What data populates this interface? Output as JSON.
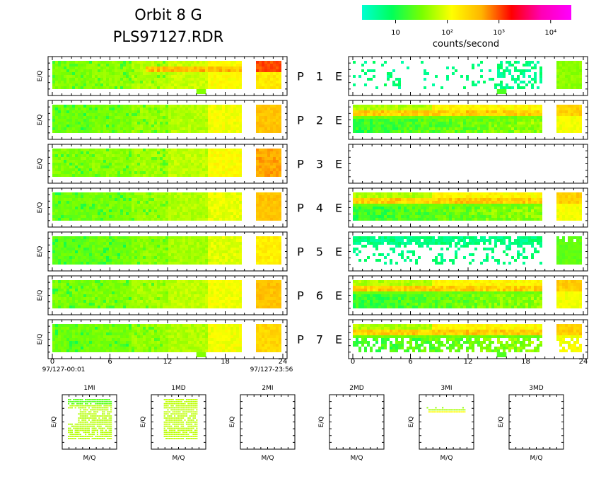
{
  "header": {
    "title_line1": "Orbit  8  G",
    "title_line2": "PLS97127.RDR"
  },
  "colorbar": {
    "label": "counts/second",
    "tick_labels": [
      "10",
      "10²",
      "10³",
      "10⁴"
    ],
    "tick_values_log": [
      1,
      2,
      3,
      4
    ],
    "range_log": [
      0.35,
      4.4
    ],
    "colors": [
      "#00ffd2",
      "#00ff5a",
      "#78ff00",
      "#ffff00",
      "#ffb400",
      "#ff0000",
      "#ff00b4",
      "#ff00ff"
    ]
  },
  "ylabel": "E/Q",
  "panels": [
    {
      "label_p": "P",
      "label_num": "1",
      "label_e": "E",
      "ion_level": [
        1.55,
        1.6,
        1.75,
        1.85,
        2.1,
        2.25
      ],
      "ion_band": {
        "row": 0.25,
        "level": 2.9
      },
      "ion_dropout": {
        "x0": 15.0,
        "x1": 16.0
      },
      "elec_present": true,
      "elec_kind": "sparse"
    },
    {
      "label_p": "P",
      "label_num": "2",
      "label_e": "E",
      "ion_level": [
        1.45,
        1.5,
        1.65,
        1.75,
        2.05,
        2.55
      ],
      "ion_band": null,
      "ion_dropout": null,
      "elec_present": true,
      "elec_kind": "banded"
    },
    {
      "label_p": "P",
      "label_num": "3",
      "label_e": "E",
      "ion_level": [
        1.55,
        1.6,
        1.7,
        1.8,
        2.1,
        2.7
      ],
      "ion_band": null,
      "ion_dropout": null,
      "elec_present": false,
      "elec_kind": "none"
    },
    {
      "label_p": "P",
      "label_num": "4",
      "label_e": "E",
      "ion_level": [
        1.45,
        1.5,
        1.65,
        1.75,
        2.0,
        2.55
      ],
      "ion_band": null,
      "ion_dropout": null,
      "elec_present": true,
      "elec_kind": "banded"
    },
    {
      "label_p": "P",
      "label_num": "5",
      "label_e": "E",
      "ion_level": [
        1.4,
        1.45,
        1.6,
        1.7,
        1.95,
        2.2
      ],
      "ion_band": null,
      "ion_dropout": null,
      "elec_present": true,
      "elec_kind": "cyan"
    },
    {
      "label_p": "P",
      "label_num": "6",
      "label_e": "E",
      "ion_level": [
        1.5,
        1.55,
        1.7,
        1.8,
        2.05,
        2.55
      ],
      "ion_band": null,
      "ion_dropout": null,
      "elec_present": true,
      "elec_kind": "banded"
    },
    {
      "label_p": "P",
      "label_num": "7",
      "label_e": "E",
      "ion_level": [
        1.45,
        1.5,
        1.65,
        1.75,
        2.05,
        2.4
      ],
      "ion_band": null,
      "ion_dropout": {
        "x0": 15.0,
        "x1": 16.0
      },
      "elec_present": true,
      "elec_kind": "patchy"
    }
  ],
  "time_axis": {
    "ticks": [
      0,
      6,
      12,
      18,
      24
    ],
    "tick_labels": [
      "0",
      "6",
      "12",
      "18",
      "24"
    ],
    "data_segments": [
      [
        0,
        19.5
      ],
      [
        21.2,
        23.6
      ]
    ],
    "start_label": "97/127-00:01",
    "end_label": "97/127-23:56"
  },
  "mq_panels": [
    {
      "title": "1MI",
      "xlabel": "M/Q",
      "ylabel": "E/Q",
      "has_data": true
    },
    {
      "title": "1MD",
      "xlabel": "M/Q",
      "ylabel": "E/Q",
      "has_data": true
    },
    {
      "title": "2MI",
      "xlabel": "M/Q",
      "ylabel": "E/Q",
      "has_data": false
    },
    {
      "title": "2MD",
      "xlabel": "M/Q",
      "ylabel": "E/Q",
      "has_data": false
    },
    {
      "title": "3MI",
      "xlabel": "M/Q",
      "ylabel": "E/Q",
      "has_data": true
    },
    {
      "title": "3MD",
      "xlabel": "M/Q",
      "ylabel": "E/Q",
      "has_data": false
    }
  ],
  "chart_data": {
    "type": "heatmap",
    "title": "Orbit 8 G / PLS97127.RDR",
    "xlabel": "",
    "ylabel": "E/Q",
    "colorbar_label": "counts/second",
    "x_range_hours": [
      0,
      24
    ],
    "color_scale": "log",
    "rows": [
      "P 1 E",
      "P 2 E",
      "P 3 E",
      "P 4 E",
      "P 5 E",
      "P 6 E",
      "P 7 E"
    ],
    "small_panels": [
      "1MI",
      "1MD",
      "2MI",
      "2MD",
      "3MI",
      "3MD"
    ]
  }
}
